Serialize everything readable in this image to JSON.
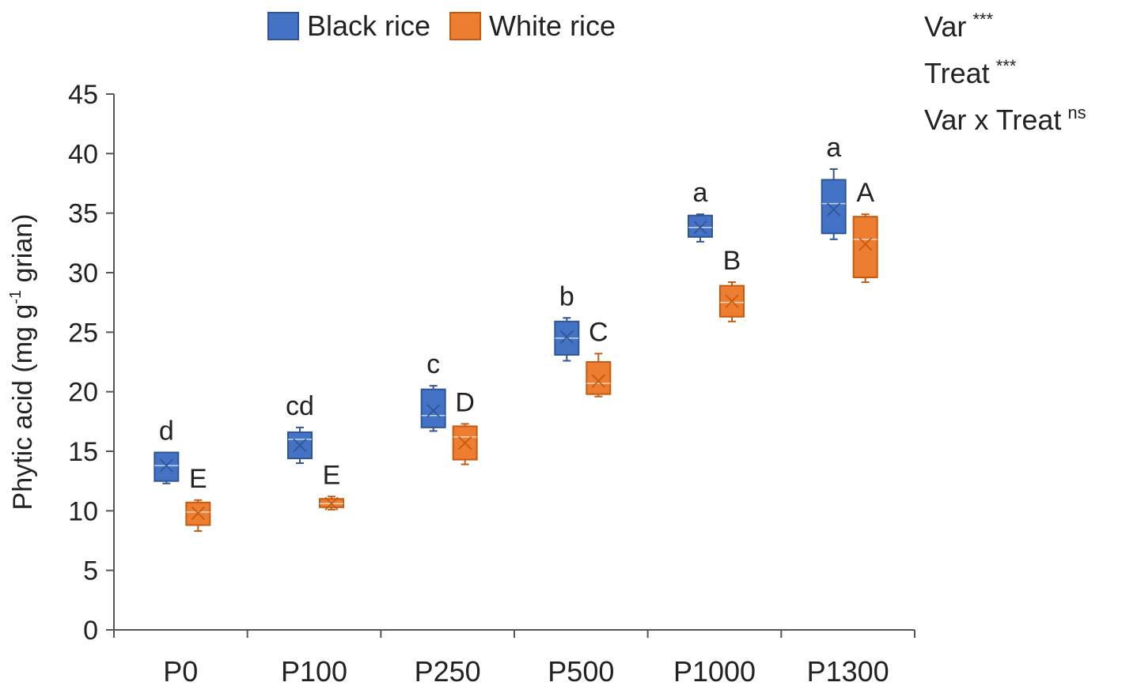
{
  "chart_data": {
    "type": "box",
    "title": "",
    "xlabel": "",
    "ylabel": "Phytic acid (mg g",
    "ylabel_sup": "-1",
    "ylabel_tail": " grian)",
    "ylim": [
      0,
      45
    ],
    "yticks": [
      0,
      5,
      10,
      15,
      20,
      25,
      30,
      35,
      40,
      45
    ],
    "categories": [
      "P0",
      "P100",
      "P250",
      "P500",
      "P1000",
      "P1300"
    ],
    "legend_position": "top",
    "grid": false,
    "series": [
      {
        "name": "Black rice",
        "color": "#4472c4",
        "border": "#2f5597",
        "boxes": [
          {
            "min": 12.3,
            "q1": 12.5,
            "median": 13.8,
            "q3": 14.9,
            "max": 14.9,
            "mean": 13.8,
            "letter": "d"
          },
          {
            "min": 14.0,
            "q1": 14.4,
            "median": 16.0,
            "q3": 16.6,
            "max": 17.0,
            "mean": 15.5,
            "letter": "cd"
          },
          {
            "min": 16.7,
            "q1": 17.0,
            "median": 18.0,
            "q3": 20.2,
            "max": 20.5,
            "mean": 18.4,
            "letter": "c"
          },
          {
            "min": 22.6,
            "q1": 23.1,
            "median": 24.5,
            "q3": 25.9,
            "max": 26.2,
            "mean": 24.6,
            "letter": "b"
          },
          {
            "min": 32.6,
            "q1": 33.0,
            "median": 33.8,
            "q3": 34.8,
            "max": 34.9,
            "mean": 33.8,
            "letter": "a"
          },
          {
            "min": 32.8,
            "q1": 33.3,
            "median": 35.8,
            "q3": 37.8,
            "max": 38.7,
            "mean": 35.3,
            "letter": "a"
          }
        ]
      },
      {
        "name": "White rice",
        "color": "#ed7d31",
        "border": "#c55a11",
        "boxes": [
          {
            "min": 8.3,
            "q1": 8.8,
            "median": 9.9,
            "q3": 10.7,
            "max": 10.9,
            "mean": 9.8,
            "letter": "E"
          },
          {
            "min": 10.1,
            "q1": 10.3,
            "median": 10.6,
            "q3": 11.0,
            "max": 11.2,
            "mean": 10.6,
            "letter": "E"
          },
          {
            "min": 13.9,
            "q1": 14.3,
            "median": 16.2,
            "q3": 17.1,
            "max": 17.3,
            "mean": 15.7,
            "letter": "D"
          },
          {
            "min": 19.6,
            "q1": 19.8,
            "median": 20.7,
            "q3": 22.5,
            "max": 23.2,
            "mean": 20.9,
            "letter": "C"
          },
          {
            "min": 25.9,
            "q1": 26.3,
            "median": 27.5,
            "q3": 28.9,
            "max": 29.2,
            "mean": 27.6,
            "letter": "B"
          },
          {
            "min": 29.2,
            "q1": 29.6,
            "median": 32.8,
            "q3": 34.7,
            "max": 34.9,
            "mean": 32.4,
            "letter": "A"
          }
        ]
      }
    ]
  },
  "stats": [
    {
      "label": "Var",
      "sig": "***"
    },
    {
      "label": "Treat",
      "sig": "***"
    },
    {
      "label": "Var x Treat",
      "sig": "ns"
    }
  ]
}
